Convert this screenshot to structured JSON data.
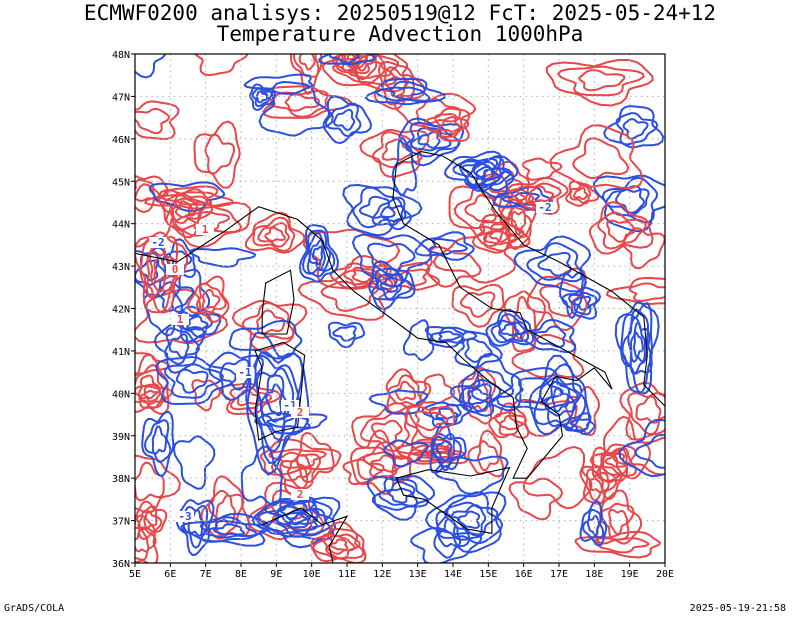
{
  "header": {
    "line1": "ECMWF0200 analisys: 20250519@12 FcT: 2025-05-24+12",
    "line2": "Temperature Advection 1000hPa"
  },
  "map": {
    "lon_labels": [
      "5E",
      "6E",
      "7E",
      "8E",
      "9E",
      "10E",
      "11E",
      "12E",
      "13E",
      "14E",
      "15E",
      "16E",
      "17E",
      "18E",
      "19E",
      "20E"
    ],
    "lat_labels": [
      "48N",
      "47N",
      "46N",
      "45N",
      "44N",
      "43N",
      "42N",
      "41N",
      "40N",
      "39N",
      "38N",
      "37N",
      "36N"
    ],
    "contour_labels": [
      "-2",
      "1",
      "-1",
      "2",
      "0",
      "-2",
      "1",
      "-3",
      "-1",
      "2"
    ],
    "colors": {
      "positive": "#e8474a",
      "negative": "#2b4fe0",
      "coast": "#000000",
      "grid": "#b0b0b0",
      "frame": "#000000"
    }
  },
  "footer": {
    "left": "GrADS/COLA",
    "right": "2025-05-19-21:58"
  }
}
